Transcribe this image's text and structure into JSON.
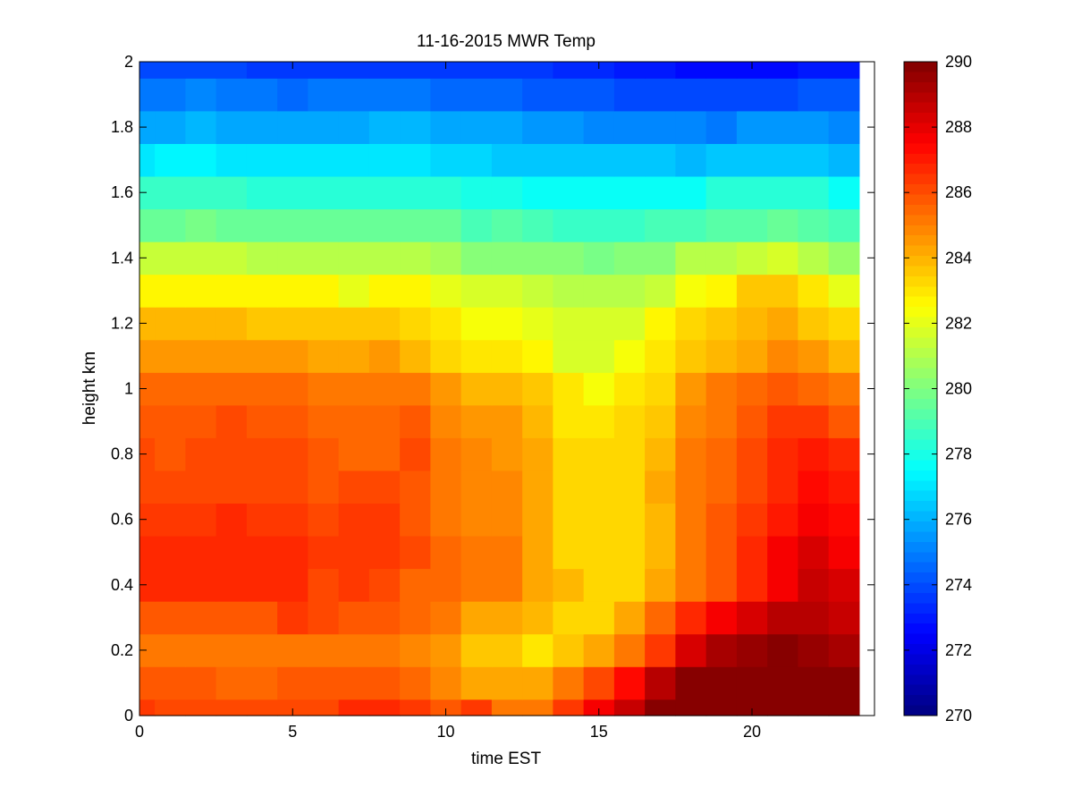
{
  "chart_data": {
    "type": "heatmap",
    "title": "11-16-2015 MWR Temp",
    "xlabel": "time EST",
    "ylabel": "height km",
    "xlim": [
      0,
      24
    ],
    "ylim": [
      0,
      2
    ],
    "xticks": [
      0,
      5,
      10,
      15,
      20
    ],
    "xtick_labels": [
      "0",
      "5",
      "10",
      "15",
      "20"
    ],
    "yticks": [
      0,
      0.2,
      0.4,
      0.6,
      0.8,
      1,
      1.2,
      1.4,
      1.6,
      1.8,
      2
    ],
    "ytick_labels": [
      "0",
      "0.2",
      "0.4",
      "0.6",
      "0.8",
      "1",
      "1.2",
      "1.4",
      "1.6",
      "1.8",
      "2"
    ],
    "colormap": "jet",
    "colorbar": {
      "clim": [
        270,
        290
      ],
      "ticks": [
        270,
        272,
        274,
        276,
        278,
        280,
        282,
        284,
        286,
        288,
        290
      ],
      "tick_labels": [
        "270",
        "272",
        "274",
        "276",
        "278",
        "280",
        "282",
        "284",
        "286",
        "288",
        "290"
      ]
    },
    "x_bounds": [
      0,
      0.5,
      1.5,
      2.5,
      3.5,
      4.5,
      5.5,
      6.5,
      7.5,
      8.5,
      9.5,
      10.5,
      11.5,
      12.5,
      13.5,
      14.5,
      15.5,
      16.5,
      17.5,
      18.5,
      19.5,
      20.5,
      21.5,
      22.5,
      23.5
    ],
    "y_bounds": [
      0,
      0.05,
      0.15,
      0.25,
      0.35,
      0.45,
      0.55,
      0.65,
      0.75,
      0.85,
      0.95,
      1.05,
      1.15,
      1.25,
      1.35,
      1.45,
      1.55,
      1.65,
      1.75,
      1.85,
      1.95,
      2.0
    ],
    "values": [
      [
        286.5,
        286.2,
        286.2,
        286.2,
        286.0,
        286.0,
        286.2,
        286.6,
        286.6,
        286.4,
        285.8,
        286.4,
        285.2,
        285.0,
        286.5,
        287.5,
        288.6,
        290,
        290,
        290,
        290,
        290,
        290,
        290
      ],
      [
        285.9,
        285.9,
        285.9,
        285.6,
        285.6,
        285.9,
        285.9,
        285.7,
        285.7,
        285.4,
        284.8,
        284.3,
        284.3,
        284.3,
        285.1,
        286.0,
        287.4,
        289.0,
        290,
        290,
        290,
        290,
        290,
        290
      ],
      [
        285.3,
        285.3,
        285.3,
        285.3,
        285.3,
        285.3,
        285.3,
        285.1,
        285.1,
        284.9,
        284.4,
        283.6,
        283.6,
        283.0,
        283.6,
        284.2,
        285.0,
        286.5,
        288.2,
        289.1,
        289.6,
        289.9,
        289.4,
        289.1
      ],
      [
        285.9,
        285.9,
        285.9,
        285.9,
        285.9,
        286.3,
        286.0,
        285.9,
        285.9,
        285.6,
        285.2,
        284.3,
        284.3,
        284.0,
        283.3,
        283.3,
        284.2,
        285.4,
        286.7,
        287.5,
        288.2,
        288.8,
        288.8,
        288.5
      ],
      [
        286.7,
        286.7,
        286.7,
        286.7,
        286.7,
        286.7,
        286.2,
        286.4,
        286.0,
        285.5,
        285.5,
        285.0,
        285.0,
        284.3,
        283.8,
        283.3,
        283.3,
        284.2,
        285.3,
        285.8,
        286.6,
        287.5,
        288.5,
        288.3
      ],
      [
        286.7,
        286.7,
        286.7,
        286.7,
        286.7,
        286.7,
        286.3,
        286.3,
        286.5,
        286.0,
        285.5,
        285.0,
        285.0,
        284.3,
        283.2,
        283.2,
        283.2,
        284.0,
        285.3,
        285.8,
        286.7,
        287.5,
        288.4,
        287.8
      ],
      [
        286.5,
        286.5,
        286.5,
        286.7,
        286.5,
        286.5,
        286.1,
        286.4,
        286.4,
        285.8,
        285.2,
        284.8,
        284.8,
        284.3,
        283.2,
        283.2,
        283.2,
        284.0,
        285.3,
        285.8,
        286.5,
        287.0,
        287.8,
        287.3
      ],
      [
        286.2,
        286.2,
        286.2,
        286.2,
        286.2,
        286.2,
        285.9,
        286.0,
        286.0,
        285.9,
        285.2,
        284.8,
        284.8,
        284.3,
        283.3,
        283.3,
        283.3,
        284.1,
        285.2,
        285.6,
        286.2,
        286.7,
        287.3,
        286.9
      ],
      [
        286.2,
        285.8,
        286.2,
        286.2,
        286.0,
        286.0,
        285.9,
        285.5,
        285.5,
        286.0,
        285.0,
        284.7,
        284.4,
        284.3,
        283.3,
        283.3,
        283.3,
        284.0,
        285.1,
        285.6,
        286.1,
        286.6,
        287.0,
        286.6
      ],
      [
        285.7,
        285.7,
        285.7,
        286.0,
        285.8,
        285.8,
        285.6,
        285.4,
        285.4,
        285.7,
        284.9,
        284.4,
        284.6,
        283.8,
        282.9,
        282.9,
        283.2,
        283.6,
        284.7,
        285.3,
        285.8,
        286.4,
        286.3,
        285.8
      ],
      [
        285.6,
        285.6,
        285.6,
        285.6,
        285.4,
        285.4,
        285.2,
        285.0,
        285.0,
        285.2,
        284.4,
        284.0,
        284.0,
        283.5,
        282.9,
        282.3,
        283.0,
        283.4,
        284.5,
        285.0,
        285.5,
        285.8,
        285.5,
        285.2
      ],
      [
        284.6,
        284.6,
        284.6,
        284.6,
        284.6,
        284.6,
        284.2,
        284.2,
        284.4,
        283.8,
        283.4,
        283.0,
        283.0,
        282.8,
        281.8,
        281.8,
        282.3,
        283.0,
        283.7,
        284.0,
        284.3,
        284.7,
        284.6,
        284.0
      ],
      [
        283.8,
        283.8,
        283.8,
        283.8,
        283.6,
        283.6,
        283.6,
        283.6,
        283.6,
        283.2,
        283.0,
        282.4,
        282.4,
        282.0,
        281.7,
        281.7,
        281.6,
        282.5,
        283.2,
        283.6,
        284.0,
        284.3,
        283.7,
        283.2
      ],
      [
        282.6,
        282.6,
        282.6,
        282.6,
        282.6,
        282.6,
        282.6,
        282.0,
        282.6,
        282.6,
        282.0,
        281.6,
        281.8,
        281.4,
        281.0,
        281.0,
        281.0,
        281.4,
        282.4,
        282.6,
        283.6,
        283.6,
        283.0,
        282.0
      ],
      [
        281.3,
        281.3,
        281.3,
        281.3,
        281.0,
        281.0,
        281.0,
        281.0,
        281.2,
        281.2,
        280.8,
        280.3,
        280.3,
        280.0,
        280.0,
        279.8,
        280.0,
        280.3,
        281.0,
        281.2,
        281.5,
        281.7,
        281.2,
        280.5
      ],
      [
        279.6,
        279.6,
        279.8,
        279.6,
        279.6,
        279.6,
        279.6,
        279.6,
        279.6,
        279.6,
        279.6,
        278.8,
        279.3,
        279.0,
        278.6,
        278.6,
        278.6,
        279.0,
        279.0,
        279.3,
        279.3,
        279.6,
        279.3,
        278.8
      ],
      [
        278.5,
        278.5,
        278.5,
        278.5,
        278.4,
        278.4,
        278.4,
        278.4,
        278.4,
        278.4,
        278.3,
        278.0,
        278.0,
        277.7,
        277.6,
        277.6,
        277.6,
        277.8,
        277.8,
        278.2,
        278.2,
        278.3,
        278.2,
        277.8
      ],
      [
        276.9,
        277.4,
        277.4,
        276.9,
        276.9,
        276.9,
        276.9,
        276.9,
        276.9,
        276.9,
        276.7,
        276.7,
        276.5,
        276.5,
        276.3,
        276.3,
        276.3,
        276.3,
        276.0,
        276.3,
        276.3,
        276.3,
        276.3,
        276.0
      ],
      [
        275.9,
        275.9,
        276.2,
        275.9,
        275.9,
        275.9,
        275.9,
        275.9,
        276.2,
        276.2,
        275.9,
        275.9,
        275.9,
        275.6,
        275.6,
        275.2,
        275.2,
        275.0,
        275.2,
        274.9,
        275.6,
        275.6,
        275.6,
        275.2
      ],
      [
        274.9,
        274.9,
        275.1,
        274.7,
        274.7,
        274.5,
        274.7,
        274.7,
        274.7,
        274.7,
        274.5,
        274.5,
        274.5,
        274.3,
        274.1,
        274.1,
        273.9,
        273.9,
        273.9,
        273.9,
        273.9,
        273.9,
        274.3,
        274.3
      ],
      [
        273.9,
        273.9,
        273.9,
        273.9,
        273.7,
        273.5,
        273.7,
        273.7,
        273.7,
        273.7,
        273.7,
        273.7,
        273.7,
        273.5,
        273.3,
        273.3,
        273.1,
        272.9,
        272.7,
        272.7,
        272.5,
        272.7,
        273.1,
        273.1
      ]
    ]
  }
}
